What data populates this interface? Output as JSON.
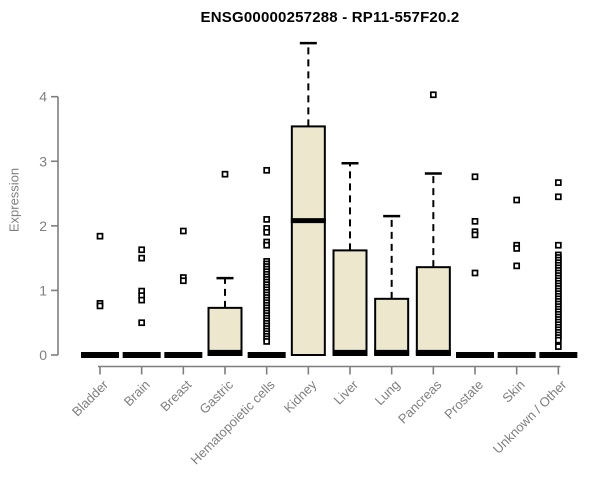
{
  "chart_data": {
    "type": "boxplot",
    "title": "ENSG00000257288 - RP11-557F20.2",
    "ylabel": "Expression",
    "xlabel": "",
    "ylim": [
      0,
      4.9
    ],
    "yticks": [
      0,
      1,
      2,
      3,
      4
    ],
    "grid": false,
    "legend": "none",
    "colors": {
      "background": "#FFFFFF",
      "box_fill": "#ECE7CD",
      "box_border": "#000000",
      "median": "#000000",
      "whisker": "#000000",
      "outlier": "#000000",
      "axis": "#7F7F7F",
      "tick_label": "#7F7F7F",
      "title": "#000000"
    },
    "categories": [
      "Bladder",
      "Brain",
      "Breast",
      "Gastric",
      "Hematopoietic cells",
      "Kidney",
      "Liver",
      "Lung",
      "Pancreas",
      "Prostate",
      "Skin",
      "Unknown / Other"
    ],
    "series": [
      {
        "q1": 0,
        "median": 0,
        "q3": 0,
        "whisker_low": 0,
        "whisker_high": 0,
        "outliers": [
          1.84,
          0.8,
          0.76
        ]
      },
      {
        "q1": 0,
        "median": 0,
        "q3": 0,
        "whisker_low": 0,
        "whisker_high": 0,
        "outliers": [
          1.63,
          1.5,
          0.99,
          0.92,
          0.85,
          0.5
        ]
      },
      {
        "q1": 0,
        "median": 0,
        "q3": 0,
        "whisker_low": 0,
        "whisker_high": 0,
        "outliers": [
          1.92,
          1.2,
          1.15
        ]
      },
      {
        "q1": 0,
        "median": 0,
        "q3": 0.73,
        "whisker_low": 0,
        "whisker_high": 1.19,
        "outliers": [
          2.8
        ]
      },
      {
        "q1": 0,
        "median": 0,
        "q3": 0,
        "whisker_low": 0,
        "whisker_high": 0,
        "outliers": [
          2.86,
          2.1,
          1.96,
          1.9,
          1.75,
          1.7,
          1.45,
          1.41,
          1.37,
          1.33,
          1.29,
          1.25,
          1.21,
          1.17,
          1.13,
          1.09,
          1.05,
          1.01,
          0.97,
          0.93,
          0.89,
          0.85,
          0.81,
          0.77,
          0.73,
          0.69,
          0.65,
          0.61,
          0.57,
          0.53,
          0.49,
          0.45,
          0.41,
          0.37,
          0.33,
          0.29,
          0.25,
          0.21
        ]
      },
      {
        "q1": 0,
        "median": 2.08,
        "q3": 3.54,
        "whisker_low": 0,
        "whisker_high": 4.83,
        "outliers": []
      },
      {
        "q1": 0,
        "median": 0,
        "q3": 1.62,
        "whisker_low": 0,
        "whisker_high": 2.97,
        "outliers": []
      },
      {
        "q1": 0,
        "median": 0,
        "q3": 0.87,
        "whisker_low": 0,
        "whisker_high": 2.15,
        "outliers": []
      },
      {
        "q1": 0,
        "median": 0,
        "q3": 1.36,
        "whisker_low": 0,
        "whisker_high": 2.81,
        "outliers": [
          4.03
        ]
      },
      {
        "q1": 0,
        "median": 0,
        "q3": 0,
        "whisker_low": 0,
        "whisker_high": 0,
        "outliers": [
          2.76,
          2.07,
          1.91,
          1.86,
          1.27
        ]
      },
      {
        "q1": 0,
        "median": 0,
        "q3": 0,
        "whisker_low": 0,
        "whisker_high": 0,
        "outliers": [
          2.4,
          1.7,
          1.65,
          1.38
        ]
      },
      {
        "q1": 0,
        "median": 0,
        "q3": 0,
        "whisker_low": 0,
        "whisker_high": 0,
        "outliers": [
          2.67,
          2.45,
          1.7,
          1.55,
          1.51,
          1.47,
          1.43,
          1.39,
          1.35,
          1.31,
          1.27,
          1.23,
          1.19,
          1.15,
          1.11,
          1.07,
          1.03,
          0.99,
          0.95,
          0.91,
          0.87,
          0.83,
          0.79,
          0.75,
          0.71,
          0.67,
          0.63,
          0.59,
          0.55,
          0.51,
          0.47,
          0.43,
          0.39,
          0.35,
          0.31,
          0.27,
          0.23,
          0.13
        ]
      }
    ]
  }
}
